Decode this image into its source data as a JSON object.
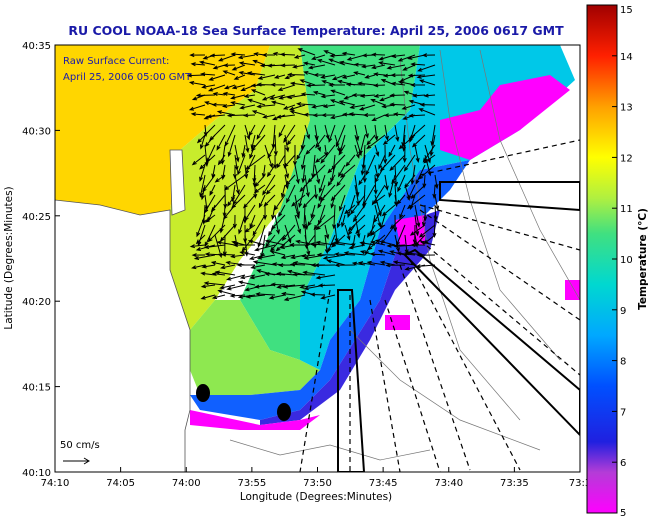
{
  "chart_data": {
    "type": "heatmap",
    "title": "RU COOL  NOAA-18  Sea Surface Temperature:  April 25, 2006 0617 GMT",
    "xlabel": "Longitude (Degrees:Minutes)",
    "ylabel": "Latitude (Degrees:Minutes)",
    "x_ticks": [
      "74:10",
      "74:05",
      "74:00",
      "73:55",
      "73:50",
      "73:45",
      "73:40",
      "73:35",
      "73:3"
    ],
    "y_ticks": [
      "40:35",
      "40:30",
      "40:25",
      "40:20",
      "40:15",
      "40:10"
    ],
    "colorbar": {
      "label": "Temperature (°C)",
      "ticks": [
        "15",
        "14",
        "13",
        "12",
        "11",
        "10",
        "9",
        "8",
        "7",
        "6",
        "5"
      ],
      "range": [
        5,
        15
      ]
    },
    "annotations": {
      "current_label": "Raw Surface Current:",
      "current_time": "April 25, 2006 05:00 GMT",
      "scale_label": "50 cm/s"
    },
    "grid": false
  }
}
